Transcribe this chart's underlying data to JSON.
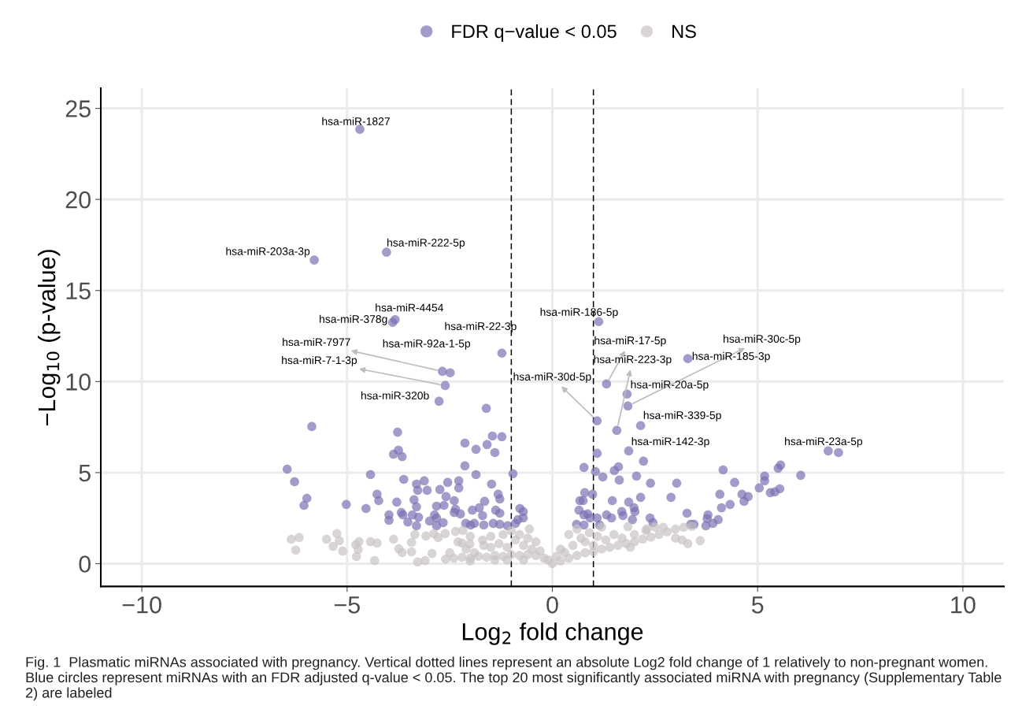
{
  "chart_data": {
    "type": "scatter",
    "xlabel": "Log$_{2}$ fold change",
    "ylabel": "−Log$_{10}$ (p-value)",
    "xlim": [
      -11,
      11
    ],
    "ylim": [
      -1.25,
      26.1
    ],
    "xticks": [
      {
        "value": -10,
        "label": "−10"
      },
      {
        "value": -5,
        "label": "−5"
      },
      0,
      5,
      10
    ],
    "yticks": [
      0,
      5,
      10,
      15,
      20,
      25
    ],
    "grid": true,
    "legend": "top",
    "marker": "circle",
    "ref_lines": [
      {
        "axis": "x",
        "value": -1,
        "color": "#000000",
        "line_style": "dashed"
      },
      {
        "axis": "x",
        "value": 1,
        "color": "#000000",
        "line_style": "dashed"
      }
    ],
    "series": [
      {
        "name": "FDR q−value < 0.05",
        "color": "#7b72b4",
        "x": [
          -4.69,
          -5.8,
          -4.04,
          -3.83,
          -3.89,
          -2.68,
          -2.49,
          -2.61,
          -1.23,
          -2.76,
          1.13,
          1.32,
          1.57,
          1.84,
          1.82,
          3.3,
          1.09,
          2.15,
          1.86,
          6.72,
          6.97,
          -1.61,
          -5.86,
          -3.77,
          -3.75,
          -3.87,
          -3.66,
          -6.46,
          -6.28,
          -5.98,
          -6.05,
          -5.02,
          -4.54,
          -4.43,
          -4.27,
          -4.23,
          -3.98,
          -3.98,
          -3.79,
          -3.68,
          -3.64,
          -3.62,
          -3.52,
          -3.41,
          -3.37,
          -3.31,
          -3.31,
          -3.28,
          -3.26,
          -3.31,
          -3.12,
          -3.05,
          -2.99,
          -2.87,
          -2.82,
          -2.82,
          -2.82,
          -2.74,
          -2.66,
          -2.64,
          -2.59,
          -2.55,
          -2.39,
          -2.39,
          -2.36,
          -2.28,
          -2.28,
          -2.24,
          -2.13,
          -2.13,
          -2.11,
          -1.99,
          -1.95,
          -1.9,
          -1.86,
          -1.86,
          -1.78,
          -1.7,
          -1.67,
          -1.65,
          -1.59,
          -1.46,
          -1.4,
          -1.23,
          -1.48,
          -1.38,
          -1.32,
          -1.28,
          -1.28,
          -1.44,
          -1.28,
          -1.09,
          -0.96,
          -0.9,
          -0.84,
          -0.79,
          -0.71,
          -0.71,
          1.09,
          2.22,
          0.77,
          1.05,
          1.23,
          1.51,
          1.61,
          1.63,
          2.05,
          2.39,
          3.03,
          4.16,
          4.44,
          5.17,
          5.17,
          5.5,
          5.56,
          6.05,
          5.04,
          5.31,
          5.42,
          5.54,
          4.62,
          4.77,
          4.67,
          4.33,
          4.12,
          4.08,
          2.89,
          3.28,
          3.37,
          3.45,
          3.79,
          3.77,
          3.74,
          3.91,
          4.04,
          0.79,
          0.98,
          0.67,
          0.75,
          0.65,
          0.77,
          0.86,
          0.92,
          0.59,
          0.77,
          1.09,
          1.15,
          1.32,
          1.46,
          1.44,
          1.69,
          1.72,
          1.86,
          1.99,
          2.01,
          1.95,
          2.15,
          2.38,
          2.45
        ],
        "values": [
          23.85,
          16.67,
          17.1,
          13.4,
          13.25,
          10.56,
          10.48,
          9.78,
          11.56,
          8.92,
          13.29,
          9.87,
          7.32,
          8.66,
          9.31,
          11.26,
          7.84,
          7.58,
          6.19,
          6.19,
          6.1,
          8.53,
          7.53,
          7.22,
          6.23,
          6.01,
          5.88,
          5.19,
          4.5,
          3.59,
          3.2,
          3.25,
          3.03,
          4.89,
          3.81,
          3.46,
          2.68,
          2.38,
          3.38,
          2.81,
          2.68,
          4.63,
          2.29,
          2.68,
          3.51,
          3.12,
          4.37,
          4.03,
          2.55,
          2.08,
          4.55,
          4.03,
          2.34,
          2.68,
          3.16,
          2.51,
          2.08,
          4.07,
          2.25,
          3.2,
          3.68,
          4.46,
          3.46,
          2.81,
          2.99,
          4.55,
          4.16,
          2.73,
          6.62,
          5.37,
          2.21,
          2.12,
          2.94,
          2.21,
          6.28,
          4.89,
          3.07,
          2.64,
          2.12,
          3.42,
          6.54,
          7.01,
          6.1,
          6.97,
          4.37,
          2.94,
          3.81,
          3.55,
          2.77,
          2.21,
          2.16,
          2.08,
          4.94,
          2.21,
          2.42,
          3.03,
          2.86,
          2.51,
          6.06,
          5.63,
          5.28,
          5.06,
          4.76,
          5.11,
          5.32,
          4.59,
          4.81,
          4.42,
          4.42,
          5.15,
          4.46,
          4.81,
          4.55,
          5.24,
          5.41,
          4.85,
          4.16,
          3.9,
          3.94,
          4.11,
          3.81,
          3.68,
          3.42,
          3.25,
          3.07,
          3.81,
          3.64,
          2.77,
          2.16,
          2.16,
          2.68,
          2.47,
          2.08,
          2.21,
          2.42,
          3.9,
          3.81,
          3.46,
          3.46,
          2.94,
          2.68,
          2.73,
          2.51,
          2.16,
          2.12,
          2.51,
          2.12,
          2.68,
          3.46,
          2.51,
          2.86,
          2.64,
          3.38,
          3.07,
          2.86,
          2.42,
          3.64,
          2.51,
          2.25
        ]
      },
      {
        "name": "NS",
        "color": "#c9c3c3",
        "x": [
          -6.36,
          -6.17,
          -6.25,
          -5.5,
          -5.25,
          -5.19,
          -5.34,
          -5.11,
          -4.79,
          -4.71,
          -4.73,
          -4.77,
          -4.43,
          -4.27,
          -4.33,
          -3.87,
          -3.74,
          -3.66,
          -3.43,
          -3.43,
          -3.28,
          -3.1,
          -2.93,
          -3.35,
          -3.08,
          -2.89,
          -2.78,
          -2.61,
          -2.36,
          -2.18,
          -2.2,
          -2.01,
          -1.67,
          -0.56,
          -2.6,
          -2.4,
          -2.2,
          -2.0,
          -1.8,
          -1.6,
          -1.4,
          -1.2,
          -1.0,
          -0.8,
          -0.6,
          -0.4,
          -0.2,
          -2.5,
          -2.1,
          -1.9,
          -1.5,
          -1.3,
          -1.1,
          -0.9,
          -0.7,
          -0.5,
          -1.2,
          -1.0,
          -0.8,
          -0.6,
          -1.5,
          -1.7,
          -2.3,
          -2.0,
          -0.4,
          -0.3,
          -0.1,
          -1.4,
          -2.0,
          -1.1,
          -0.7,
          0.0,
          0.2,
          0.4,
          0.6,
          0.8,
          1.0,
          1.2,
          1.4,
          1.6,
          1.8,
          2.0,
          2.2,
          2.4,
          2.6,
          2.8,
          3.0,
          3.2,
          3.4,
          0.3,
          0.5,
          0.7,
          0.9,
          0.6,
          0.8,
          1.1,
          1.3,
          1.5,
          1.7,
          2.0,
          2.3,
          2.5,
          1.2,
          0.4,
          0.2,
          0.1,
          3.0,
          3.3,
          2.7,
          1.9,
          1.0,
          3.16,
          3.6,
          2.28,
          1.84
        ],
        "values": [
          1.34,
          1.43,
          0.74,
          1.34,
          1.65,
          1.26,
          0.95,
          0.69,
          1.04,
          1.21,
          0.78,
          0.39,
          1.21,
          1.13,
          0.17,
          1.34,
          0.82,
          0.61,
          1.17,
          0.65,
          0.09,
          0.17,
          0.56,
          1.6,
          1.52,
          1.65,
          1.43,
          1.65,
          1.77,
          1.82,
          1.13,
          1.08,
          1.0,
          1.9,
          0.25,
          0.3,
          0.35,
          0.3,
          0.4,
          0.35,
          0.45,
          0.4,
          0.5,
          0.45,
          0.5,
          0.45,
          0.3,
          0.6,
          0.8,
          0.6,
          0.9,
          1.1,
          0.9,
          1.3,
          1.0,
          0.8,
          1.6,
          1.8,
          1.6,
          1.4,
          1.5,
          1.3,
          1.2,
          1.5,
          1.2,
          0.7,
          0.2,
          0.2,
          0.15,
          0.2,
          0.2,
          0.0,
          0.15,
          0.3,
          0.45,
          0.6,
          0.65,
          0.8,
          0.9,
          1.0,
          1.1,
          1.2,
          1.35,
          1.45,
          1.6,
          1.75,
          1.9,
          2.0,
          2.05,
          0.6,
          1.0,
          1.4,
          1.7,
          1.9,
          1.2,
          1.5,
          1.3,
          1.6,
          1.4,
          1.6,
          1.9,
          2.0,
          2.0,
          1.6,
          0.8,
          0.4,
          1.4,
          1.1,
          2.0,
          0.9,
          1.0,
          1.3,
          1.26,
          1.82,
          2.03
        ]
      }
    ],
    "annotations": [
      {
        "text": "hsa-miR-1827",
        "x": -4.69,
        "y": 23.85
      },
      {
        "text": "hsa-miR-203a-3p",
        "x": -5.8,
        "y": 16.67
      },
      {
        "text": "hsa-miR-222-5p",
        "x": -4.04,
        "y": 17.1
      },
      {
        "text": "hsa-miR-4454",
        "x": -3.83,
        "y": 13.4
      },
      {
        "text": "hsa-miR-378g",
        "x": -3.89,
        "y": 13.25
      },
      {
        "text": "hsa-miR-7977",
        "x": -2.68,
        "y": 10.56
      },
      {
        "text": "hsa-miR-92a-1-5p",
        "x": -2.49,
        "y": 10.48
      },
      {
        "text": "hsa-miR-7-1-3p",
        "x": -2.61,
        "y": 9.78
      },
      {
        "text": "hsa-miR-22-3p",
        "x": -1.23,
        "y": 11.56
      },
      {
        "text": "hsa-miR-320b",
        "x": -2.76,
        "y": 8.92
      },
      {
        "text": "hsa-miR-186-5p",
        "x": 1.13,
        "y": 13.29
      },
      {
        "text": "hsa-miR-17-5p",
        "x": 1.32,
        "y": 9.87
      },
      {
        "text": "hsa-miR-223-3p",
        "x": 1.57,
        "y": 7.32
      },
      {
        "text": "hsa-miR-30c-5p",
        "x": 1.84,
        "y": 8.66
      },
      {
        "text": "hsa-miR-20a-5p",
        "x": 1.82,
        "y": 9.31
      },
      {
        "text": "hsa-miR-185-3p",
        "x": 3.3,
        "y": 11.26
      },
      {
        "text": "hsa-miR-30d-5p",
        "x": 1.09,
        "y": 7.84
      },
      {
        "text": "hsa-miR-339-5p",
        "x": 2.15,
        "y": 7.58
      },
      {
        "text": "hsa-miR-142-3p",
        "x": 1.86,
        "y": 6.19
      },
      {
        "text": "hsa-miR-23a-5p",
        "x": 6.72,
        "y": 6.19
      },
      "Fig. 1  Plasmatic miRNAs associated with pregnancy. Vertical dotted lines represent an absolute Log2 fold change of 1 relatively to non-pregnant women. Blue circles represent miRNAs with an FDR adjusted q-value < 0.05. The top 20 most significantly associated miRNA with pregnancy (Supplementary Table 2) are labeled"
    ]
  }
}
